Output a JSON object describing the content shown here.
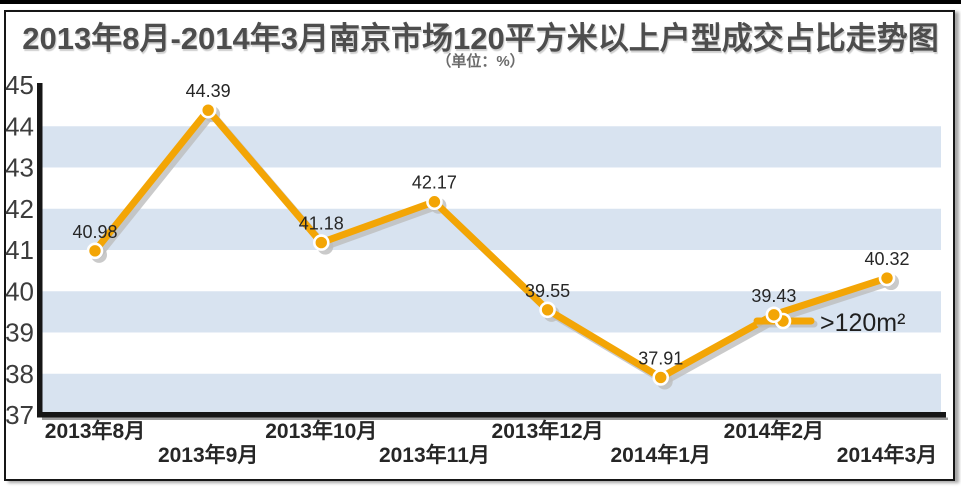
{
  "page": {
    "title": "2013年8月-2014年3月南京市场120平方米以上户型成交占比走势图",
    "unit_label": "（单位：%）"
  },
  "chart_data": {
    "type": "line",
    "title": "2013年8月-2014年3月南京市场120平方米以上户型成交占比走势图",
    "subtitle": "（单位：%）",
    "categories": [
      "2013年8月",
      "2013年9月",
      "2013年10月",
      "2013年11月",
      "2013年12月",
      "2014年1月",
      "2014年2月",
      "2014年3月"
    ],
    "series": [
      {
        "name": ">120m²",
        "values": [
          40.98,
          44.39,
          41.18,
          42.17,
          39.55,
          37.91,
          39.43,
          40.32
        ]
      }
    ],
    "data_labels": [
      "40.98",
      "44.39",
      "41.18",
      "42.17",
      "39.55",
      "37.91",
      "39.43",
      "40.32"
    ],
    "ylabel": "",
    "xlabel": "",
    "ylim": [
      37,
      45
    ],
    "yticks": [
      45,
      44,
      43,
      42,
      41,
      40,
      39,
      38,
      37
    ],
    "grid": "alternating horizontal bands, no gridlines",
    "legend": {
      "label": ">120m²",
      "position": "middle-right, beside 2014年2月 point"
    },
    "colors": {
      "line": "#F3A505",
      "marker_fill": "#F3A505",
      "marker_ring": "#FFFFFF",
      "shadow": "#BDBDBD",
      "band": "#D8E3F0",
      "band_alt": "#FFFFFF",
      "axis": "#161616",
      "value_label": "#262626",
      "tick_label": "#3C3C3C",
      "title": "#4D4D4D"
    }
  }
}
